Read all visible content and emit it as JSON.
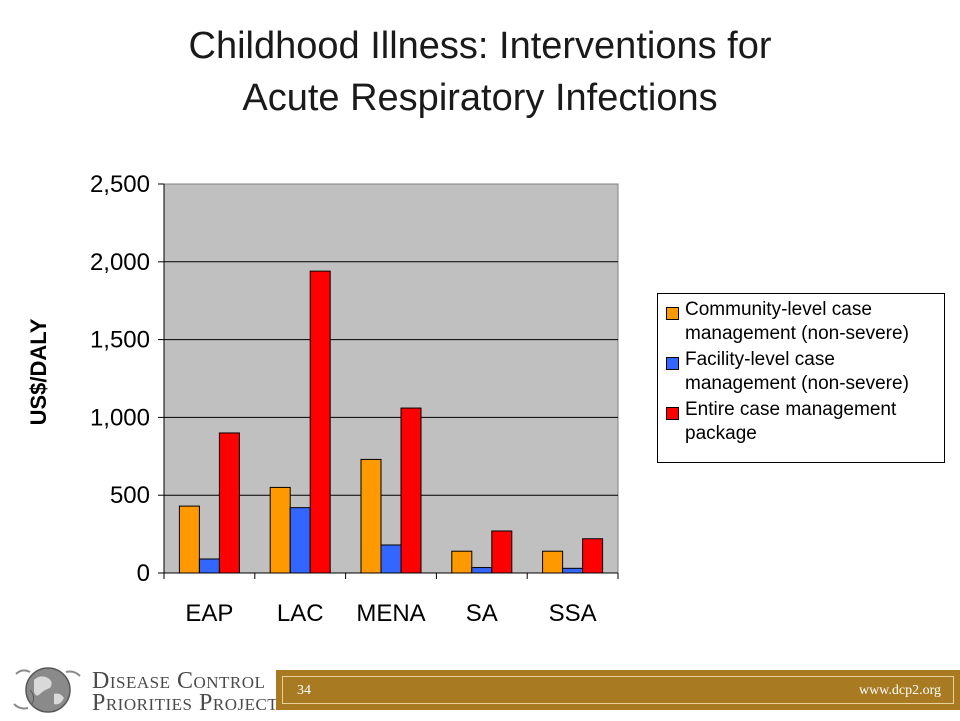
{
  "slide": {
    "title_line1": "Childhood Illness: Interventions for",
    "title_line2": "Acute Respiratory Infections"
  },
  "chart_data": {
    "type": "bar",
    "title": "",
    "xlabel": "",
    "ylabel": "US$/DALY",
    "ylim": [
      0,
      2500
    ],
    "yticks": [
      0,
      500,
      1000,
      1500,
      2000,
      2500
    ],
    "ytick_labels": [
      "0",
      "500",
      "1,000",
      "1,500",
      "2,000",
      "2,500"
    ],
    "categories": [
      "EAP",
      "LAC",
      "MENA",
      "SA",
      "SSA"
    ],
    "series": [
      {
        "name": "Community-level case management (non-severe)",
        "color": "#ff9900",
        "values": [
          430,
          550,
          730,
          140,
          140
        ]
      },
      {
        "name": "Facility-level case management (non-severe)",
        "color": "#3366ff",
        "values": [
          90,
          420,
          180,
          35,
          30
        ]
      },
      {
        "name": "Entire case management package",
        "color": "#ff0000",
        "values": [
          900,
          1940,
          1060,
          270,
          220
        ]
      }
    ],
    "plot_background": "#c0c0c0",
    "grid": true,
    "legend_position": "right"
  },
  "legend": {
    "items": [
      {
        "label_line1": "Community-level case",
        "label_line2": "management (non-severe)",
        "color": "#ff9900"
      },
      {
        "label_line1": "Facility-level case",
        "label_line2": "management (non-severe)",
        "color": "#3366ff"
      },
      {
        "label_line1": "Entire case management",
        "label_line2": "package",
        "color": "#ff0000"
      }
    ]
  },
  "footer": {
    "logo_line1": "Disease Control",
    "logo_line2": "Priorities Project",
    "page_number": "34",
    "url": "www.dcp2.org",
    "bar_color": "#a87b22"
  }
}
